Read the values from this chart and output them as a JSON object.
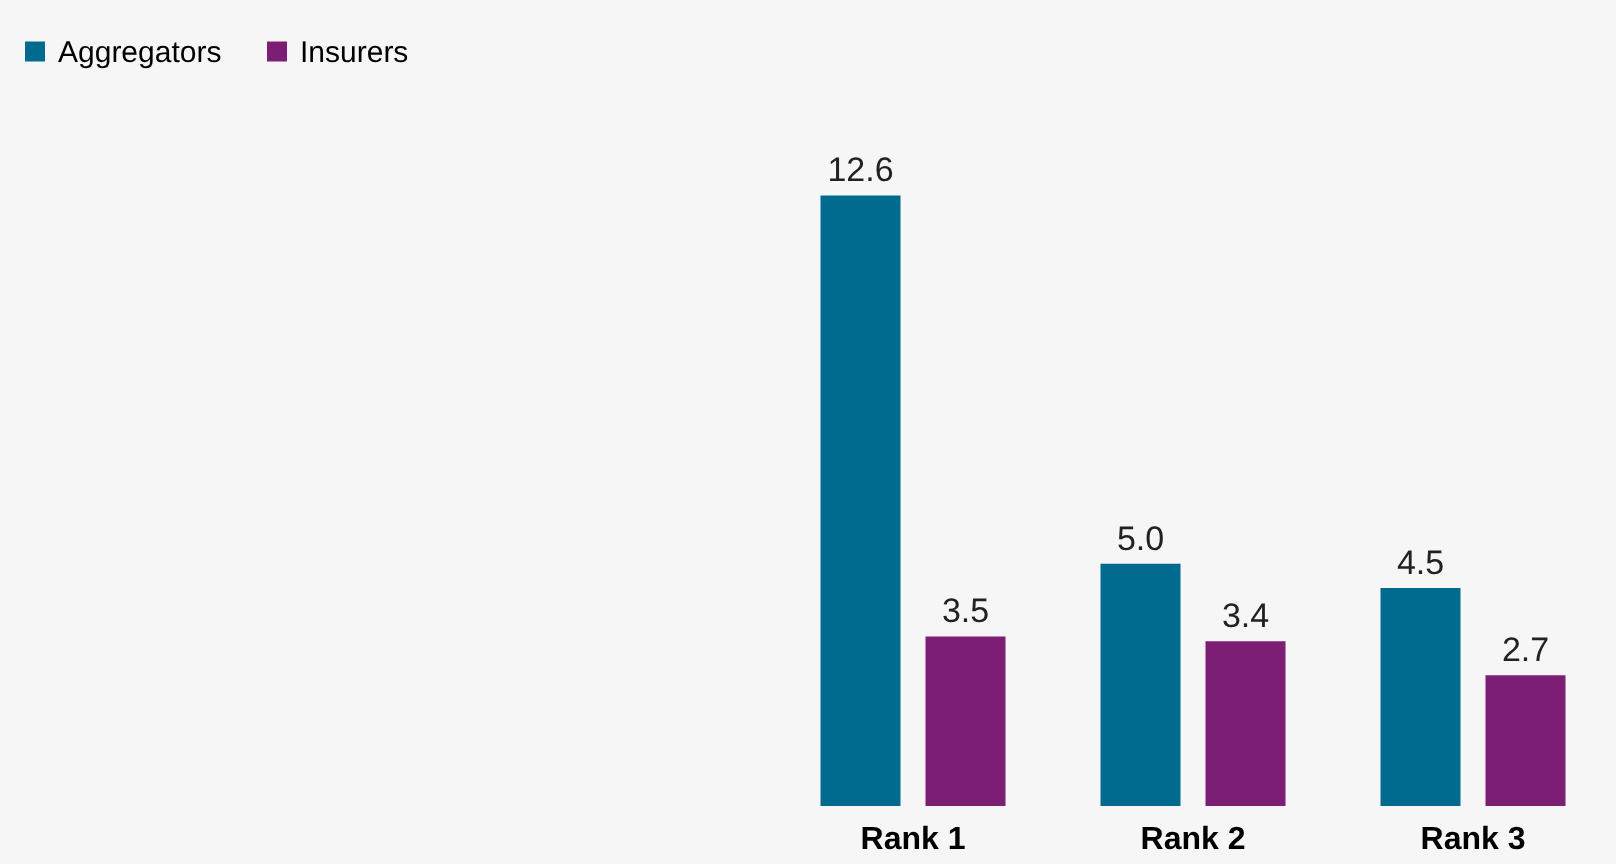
{
  "chart_data": {
    "type": "bar",
    "categories": [
      "Rank 1",
      "Rank 2",
      "Rank 3"
    ],
    "series": [
      {
        "name": "Aggregators",
        "color": "#006a8e",
        "values": [
          12.6,
          5.0,
          4.5
        ],
        "value_labels": [
          "12.6",
          "5.0",
          "4.5"
        ]
      },
      {
        "name": "Insurers",
        "color": "#7b1e74",
        "values": [
          3.5,
          3.4,
          2.7
        ],
        "value_labels": [
          "3.5",
          "3.4",
          "2.7"
        ]
      }
    ],
    "legend": "top left",
    "grid": false
  }
}
